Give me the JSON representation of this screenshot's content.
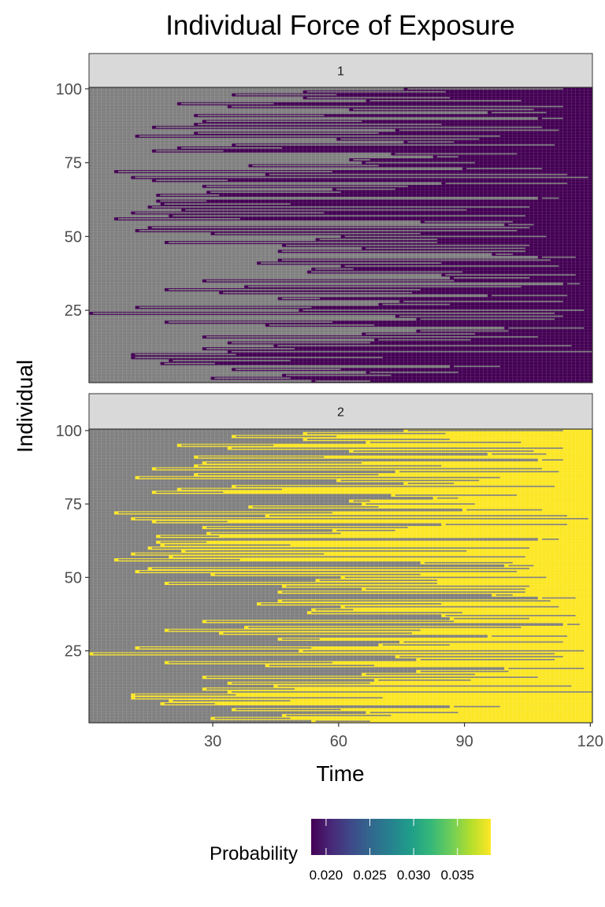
{
  "chart_data": {
    "type": "heatmap",
    "title": "Individual Force of Exposure",
    "xlabel": "Time",
    "ylabel": "Individual",
    "xlim": [
      1,
      120
    ],
    "ylim": [
      1,
      100
    ],
    "x_ticks": [
      30,
      60,
      90,
      120
    ],
    "x_tick_labels": [
      "30",
      "60",
      "90",
      "120"
    ],
    "y_ticks": [
      25,
      50,
      75,
      100
    ],
    "y_tick_labels": [
      "25",
      "50",
      "75",
      "100"
    ],
    "facets": [
      {
        "label": "1",
        "value_probability": 0.02,
        "color": "#440154"
      },
      {
        "label": "2",
        "value_probability": 0.038,
        "color": "#FDE725"
      }
    ],
    "na_color": "#808080",
    "gridlines": true,
    "exposure_start": [
      54,
      30,
      47,
      67,
      35,
      87,
      18,
      20,
      11,
      11,
      34,
      28,
      45,
      34,
      69,
      28,
      66,
      79,
      100,
      43,
      19,
      79,
      74,
      1,
      51,
      12,
      70,
      75,
      46,
      96,
      32,
      19,
      38,
      114,
      28,
      87,
      85,
      53,
      54,
      61,
      41,
      46,
      108,
      97,
      46,
      66,
      47,
      19,
      55,
      61,
      30,
      12,
      15,
      100,
      80,
      7,
      20,
      11,
      23,
      15,
      18,
      17,
      108,
      17,
      29,
      59,
      28,
      85,
      16,
      11,
      43,
      7,
      90,
      39,
      66,
      63,
      83,
      73,
      16,
      22,
      35,
      76,
      60,
      12,
      26,
      74,
      16,
      26,
      28,
      108,
      26,
      96,
      63,
      34,
      22,
      67,
      52,
      35,
      52,
      76
    ],
    "exposure_end": [
      67,
      48,
      72,
      88,
      60,
      98,
      30,
      48,
      70,
      35,
      120,
      49,
      115,
      67,
      91,
      107,
      92,
      100,
      118,
      68,
      58,
      111,
      113,
      111,
      118,
      53,
      86,
      113,
      55,
      114,
      77,
      79,
      103,
      117,
      87,
      105,
      116,
      89,
      63,
      112,
      84,
      110,
      116,
      101,
      104,
      104,
      105,
      83,
      83,
      109,
      79,
      102,
      105,
      106,
      101,
      36,
      104,
      56,
      90,
      105,
      48,
      28,
      112,
      31,
      60,
      73,
      76,
      114,
      33,
      119,
      114,
      58,
      108,
      69,
      92,
      67,
      88,
      102,
      32,
      46,
      111,
      87,
      93,
      98,
      69,
      112,
      108,
      84,
      65,
      113,
      56,
      109,
      106,
      113,
      44,
      103,
      86,
      59,
      85,
      113
    ],
    "legend": {
      "title": "Probability",
      "position": "bottom",
      "range": [
        0.0183,
        0.0388
      ],
      "breaks": [
        0.02,
        0.025,
        0.03,
        0.035
      ],
      "break_labels": [
        "0.020",
        "0.025",
        "0.030",
        "0.035"
      ],
      "colors": [
        "#440154",
        "#482878",
        "#3E4A89",
        "#31688E",
        "#26828E",
        "#1F9E89",
        "#35B779",
        "#6DCD59",
        "#B4DE2C",
        "#FDE725"
      ]
    }
  }
}
